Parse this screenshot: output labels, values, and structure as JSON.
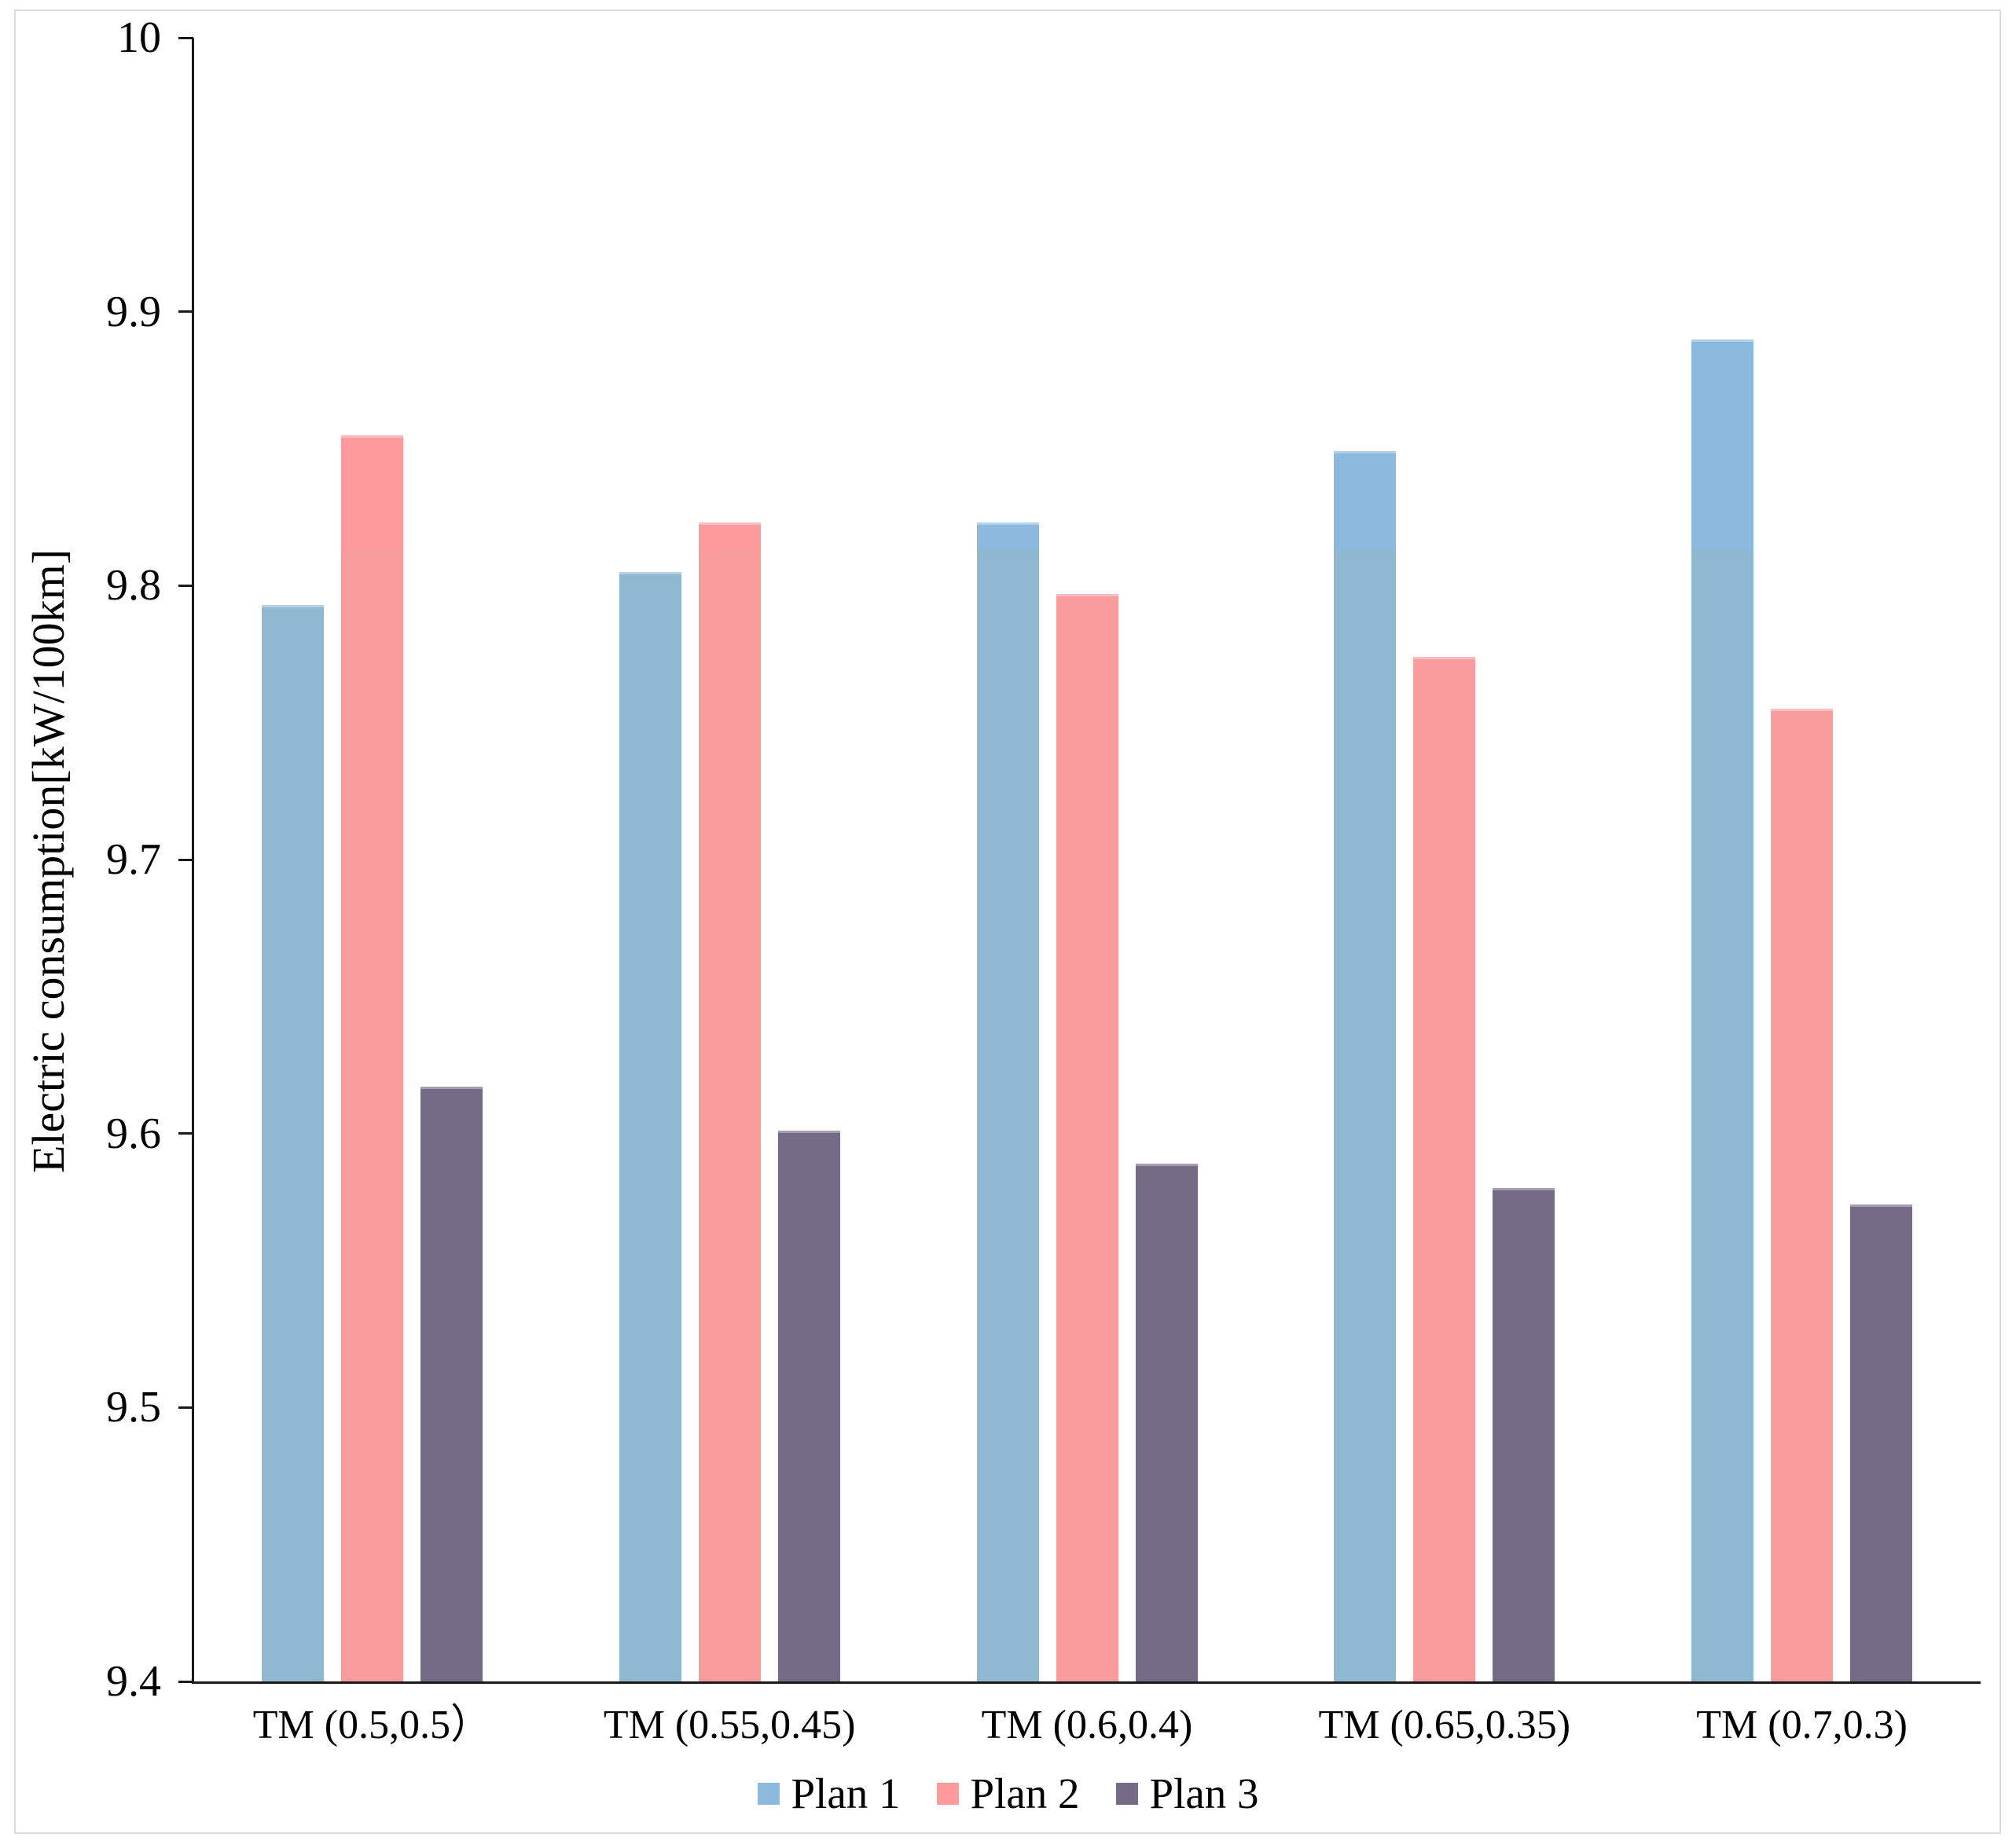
{
  "figure": {
    "background": "#ffffff",
    "frame_border_color": "#dcdcdc",
    "axis_color": "#1a1a1a"
  },
  "chart_data": {
    "type": "bar",
    "title": "",
    "xlabel": "",
    "ylabel": "Electric consumption[kW/100km]",
    "ylim": [
      9.4,
      10.0
    ],
    "ytick_step": 0.1,
    "yticks": [
      {
        "label": "10",
        "value": 10.0
      },
      {
        "label": "9.9",
        "value": 9.9
      },
      {
        "label": "9.8",
        "value": 9.8
      },
      {
        "label": "9.7",
        "value": 9.7
      },
      {
        "label": "9.6",
        "value": 9.6
      },
      {
        "label": "9.5",
        "value": 9.5
      },
      {
        "label": "9.4",
        "value": 9.4
      }
    ],
    "categories": [
      "TM (0.5,0.5）",
      "TM (0.55,0.45)",
      "TM (0.6,0.4)",
      "TM (0.65,0.35)",
      "TM (0.7,0.3)"
    ],
    "series": [
      {
        "name": "Plan 1",
        "color": "#8bbade",
        "color_muted": "#8fb9d0",
        "values": [
          9.793,
          9.805,
          9.823,
          9.849,
          9.89
        ]
      },
      {
        "name": "Plan 2",
        "color": "#fd9a9b",
        "color_muted": "#f89c9e",
        "values": [
          9.855,
          9.823,
          9.797,
          9.774,
          9.755
        ]
      },
      {
        "name": "Plan 3",
        "color": "#766b86",
        "color_muted": "#766b86",
        "values": [
          9.617,
          9.601,
          9.589,
          9.58,
          9.574
        ]
      }
    ],
    "shade_boundary_value": 9.813,
    "grid": false,
    "legend_position": "bottom-center",
    "legend": [
      "Plan 1",
      "Plan 2",
      "Plan 3"
    ]
  }
}
